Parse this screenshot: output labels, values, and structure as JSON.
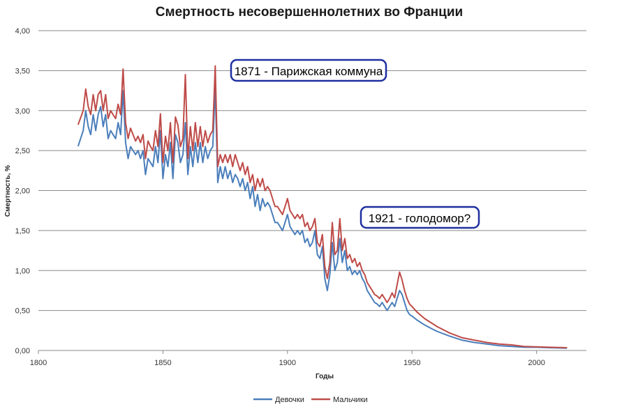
{
  "chart_data": {
    "type": "line",
    "title": "Смертность несовершеннолетних во Франции",
    "xlabel": "Годы",
    "ylabel": "Смертность, %",
    "xlim": [
      1800,
      2020
    ],
    "ylim": [
      0,
      4
    ],
    "x_ticks": [
      "1800",
      "1850",
      "1900",
      "1950",
      "2000"
    ],
    "y_ticks": [
      "0,00",
      "0,50",
      "1,00",
      "1,50",
      "2,00",
      "2,50",
      "3,00",
      "3,50",
      "4,00"
    ],
    "grid": "horizontal",
    "legend_position": "bottom",
    "colors": {
      "girls": "#4a7ebb",
      "boys": "#be4b48"
    },
    "series": [
      {
        "name": "Девочки",
        "points": [
          [
            1816,
            2.56
          ],
          [
            1818,
            2.75
          ],
          [
            1819,
            3.0
          ],
          [
            1820,
            2.8
          ],
          [
            1821,
            2.7
          ],
          [
            1822,
            2.95
          ],
          [
            1823,
            2.75
          ],
          [
            1824,
            2.95
          ],
          [
            1825,
            3.05
          ],
          [
            1826,
            2.8
          ],
          [
            1827,
            2.95
          ],
          [
            1828,
            2.65
          ],
          [
            1829,
            2.75
          ],
          [
            1830,
            2.7
          ],
          [
            1831,
            2.65
          ],
          [
            1832,
            2.85
          ],
          [
            1833,
            2.7
          ],
          [
            1834,
            3.25
          ],
          [
            1835,
            2.6
          ],
          [
            1836,
            2.4
          ],
          [
            1837,
            2.55
          ],
          [
            1838,
            2.5
          ],
          [
            1839,
            2.45
          ],
          [
            1840,
            2.5
          ],
          [
            1841,
            2.4
          ],
          [
            1842,
            2.5
          ],
          [
            1843,
            2.2
          ],
          [
            1844,
            2.4
          ],
          [
            1845,
            2.35
          ],
          [
            1846,
            2.3
          ],
          [
            1847,
            2.55
          ],
          [
            1848,
            2.35
          ],
          [
            1849,
            2.75
          ],
          [
            1850,
            2.15
          ],
          [
            1851,
            2.45
          ],
          [
            1852,
            2.3
          ],
          [
            1853,
            2.6
          ],
          [
            1854,
            2.15
          ],
          [
            1855,
            2.7
          ],
          [
            1856,
            2.6
          ],
          [
            1857,
            2.35
          ],
          [
            1858,
            2.45
          ],
          [
            1859,
            2.85
          ],
          [
            1860,
            2.2
          ],
          [
            1861,
            2.55
          ],
          [
            1862,
            2.3
          ],
          [
            1863,
            2.6
          ],
          [
            1864,
            2.35
          ],
          [
            1865,
            2.6
          ],
          [
            1866,
            2.35
          ],
          [
            1867,
            2.55
          ],
          [
            1868,
            2.4
          ],
          [
            1869,
            2.5
          ],
          [
            1870,
            2.55
          ],
          [
            1871,
            3.3
          ],
          [
            1872,
            2.1
          ],
          [
            1873,
            2.3
          ],
          [
            1874,
            2.15
          ],
          [
            1875,
            2.3
          ],
          [
            1876,
            2.15
          ],
          [
            1877,
            2.25
          ],
          [
            1878,
            2.1
          ],
          [
            1879,
            2.2
          ],
          [
            1880,
            2.15
          ],
          [
            1881,
            2.05
          ],
          [
            1882,
            2.15
          ],
          [
            1883,
            2.0
          ],
          [
            1884,
            2.1
          ],
          [
            1885,
            1.9
          ],
          [
            1886,
            2.05
          ],
          [
            1887,
            1.8
          ],
          [
            1888,
            1.95
          ],
          [
            1889,
            1.75
          ],
          [
            1890,
            1.9
          ],
          [
            1891,
            1.8
          ],
          [
            1892,
            1.85
          ],
          [
            1893,
            1.8
          ],
          [
            1894,
            1.7
          ],
          [
            1895,
            1.6
          ],
          [
            1896,
            1.6
          ],
          [
            1897,
            1.55
          ],
          [
            1898,
            1.5
          ],
          [
            1899,
            1.6
          ],
          [
            1900,
            1.7
          ],
          [
            1901,
            1.55
          ],
          [
            1902,
            1.5
          ],
          [
            1903,
            1.45
          ],
          [
            1904,
            1.5
          ],
          [
            1905,
            1.45
          ],
          [
            1906,
            1.5
          ],
          [
            1907,
            1.35
          ],
          [
            1908,
            1.4
          ],
          [
            1909,
            1.3
          ],
          [
            1910,
            1.35
          ],
          [
            1911,
            1.5
          ],
          [
            1912,
            1.2
          ],
          [
            1913,
            1.15
          ],
          [
            1914,
            1.3
          ],
          [
            1915,
            0.9
          ],
          [
            1916,
            0.75
          ],
          [
            1917,
            0.95
          ],
          [
            1918,
            1.35
          ],
          [
            1919,
            1.0
          ],
          [
            1920,
            1.1
          ],
          [
            1921,
            1.4
          ],
          [
            1922,
            1.1
          ],
          [
            1923,
            1.25
          ],
          [
            1924,
            1.0
          ],
          [
            1925,
            1.05
          ],
          [
            1926,
            0.95
          ],
          [
            1927,
            1.0
          ],
          [
            1928,
            0.95
          ],
          [
            1929,
            1.0
          ],
          [
            1930,
            0.9
          ],
          [
            1931,
            0.85
          ],
          [
            1932,
            0.75
          ],
          [
            1933,
            0.7
          ],
          [
            1934,
            0.65
          ],
          [
            1935,
            0.6
          ],
          [
            1936,
            0.58
          ],
          [
            1937,
            0.55
          ],
          [
            1938,
            0.6
          ],
          [
            1939,
            0.55
          ],
          [
            1940,
            0.5
          ],
          [
            1941,
            0.55
          ],
          [
            1942,
            0.6
          ],
          [
            1943,
            0.55
          ],
          [
            1944,
            0.65
          ],
          [
            1945,
            0.75
          ],
          [
            1946,
            0.7
          ],
          [
            1947,
            0.6
          ],
          [
            1948,
            0.5
          ],
          [
            1949,
            0.45
          ],
          [
            1950,
            0.43
          ],
          [
            1952,
            0.38
          ],
          [
            1955,
            0.32
          ],
          [
            1958,
            0.27
          ],
          [
            1960,
            0.24
          ],
          [
            1965,
            0.18
          ],
          [
            1970,
            0.13
          ],
          [
            1975,
            0.1
          ],
          [
            1980,
            0.08
          ],
          [
            1985,
            0.06
          ],
          [
            1990,
            0.05
          ],
          [
            1995,
            0.04
          ],
          [
            2000,
            0.04
          ],
          [
            2005,
            0.035
          ],
          [
            2012,
            0.03
          ]
        ]
      },
      {
        "name": "Мальчики",
        "points": [
          [
            1816,
            2.83
          ],
          [
            1818,
            3.0
          ],
          [
            1819,
            3.27
          ],
          [
            1820,
            3.05
          ],
          [
            1821,
            2.95
          ],
          [
            1822,
            3.2
          ],
          [
            1823,
            3.0
          ],
          [
            1824,
            3.2
          ],
          [
            1825,
            3.25
          ],
          [
            1826,
            3.0
          ],
          [
            1827,
            3.2
          ],
          [
            1828,
            2.9
          ],
          [
            1829,
            3.0
          ],
          [
            1830,
            2.95
          ],
          [
            1831,
            2.9
          ],
          [
            1832,
            3.08
          ],
          [
            1833,
            2.95
          ],
          [
            1834,
            3.52
          ],
          [
            1835,
            2.85
          ],
          [
            1836,
            2.65
          ],
          [
            1837,
            2.78
          ],
          [
            1838,
            2.7
          ],
          [
            1839,
            2.62
          ],
          [
            1840,
            2.68
          ],
          [
            1841,
            2.6
          ],
          [
            1842,
            2.7
          ],
          [
            1843,
            2.4
          ],
          [
            1844,
            2.62
          ],
          [
            1845,
            2.55
          ],
          [
            1846,
            2.5
          ],
          [
            1847,
            2.75
          ],
          [
            1848,
            2.55
          ],
          [
            1849,
            2.96
          ],
          [
            1850,
            2.35
          ],
          [
            1851,
            2.68
          ],
          [
            1852,
            2.5
          ],
          [
            1853,
            2.85
          ],
          [
            1854,
            2.35
          ],
          [
            1855,
            2.92
          ],
          [
            1856,
            2.82
          ],
          [
            1857,
            2.55
          ],
          [
            1858,
            2.65
          ],
          [
            1859,
            3.45
          ],
          [
            1860,
            2.4
          ],
          [
            1861,
            2.8
          ],
          [
            1862,
            2.5
          ],
          [
            1863,
            2.85
          ],
          [
            1864,
            2.55
          ],
          [
            1865,
            2.8
          ],
          [
            1866,
            2.55
          ],
          [
            1867,
            2.75
          ],
          [
            1868,
            2.6
          ],
          [
            1869,
            2.7
          ],
          [
            1870,
            2.75
          ],
          [
            1871,
            3.56
          ],
          [
            1872,
            2.3
          ],
          [
            1873,
            2.45
          ],
          [
            1874,
            2.35
          ],
          [
            1875,
            2.45
          ],
          [
            1876,
            2.35
          ],
          [
            1877,
            2.45
          ],
          [
            1878,
            2.3
          ],
          [
            1879,
            2.45
          ],
          [
            1880,
            2.35
          ],
          [
            1881,
            2.25
          ],
          [
            1882,
            2.35
          ],
          [
            1883,
            2.2
          ],
          [
            1884,
            2.3
          ],
          [
            1885,
            2.1
          ],
          [
            1886,
            2.2
          ],
          [
            1887,
            2.0
          ],
          [
            1888,
            2.15
          ],
          [
            1889,
            2.05
          ],
          [
            1890,
            2.15
          ],
          [
            1891,
            2.0
          ],
          [
            1892,
            2.05
          ],
          [
            1893,
            2.0
          ],
          [
            1894,
            1.9
          ],
          [
            1895,
            1.8
          ],
          [
            1896,
            1.8
          ],
          [
            1897,
            1.75
          ],
          [
            1898,
            1.7
          ],
          [
            1899,
            1.8
          ],
          [
            1900,
            1.9
          ],
          [
            1901,
            1.75
          ],
          [
            1902,
            1.7
          ],
          [
            1903,
            1.65
          ],
          [
            1904,
            1.7
          ],
          [
            1905,
            1.65
          ],
          [
            1906,
            1.7
          ],
          [
            1907,
            1.55
          ],
          [
            1908,
            1.6
          ],
          [
            1909,
            1.5
          ],
          [
            1910,
            1.55
          ],
          [
            1911,
            1.65
          ],
          [
            1912,
            1.35
          ],
          [
            1913,
            1.3
          ],
          [
            1914,
            1.45
          ],
          [
            1915,
            1.05
          ],
          [
            1916,
            0.9
          ],
          [
            1917,
            1.1
          ],
          [
            1918,
            1.6
          ],
          [
            1919,
            1.2
          ],
          [
            1920,
            1.25
          ],
          [
            1921,
            1.65
          ],
          [
            1922,
            1.25
          ],
          [
            1923,
            1.4
          ],
          [
            1924,
            1.15
          ],
          [
            1925,
            1.2
          ],
          [
            1926,
            1.1
          ],
          [
            1927,
            1.15
          ],
          [
            1928,
            1.05
          ],
          [
            1929,
            1.1
          ],
          [
            1930,
            1.0
          ],
          [
            1931,
            0.95
          ],
          [
            1932,
            0.85
          ],
          [
            1933,
            0.8
          ],
          [
            1934,
            0.75
          ],
          [
            1935,
            0.7
          ],
          [
            1936,
            0.68
          ],
          [
            1937,
            0.65
          ],
          [
            1938,
            0.7
          ],
          [
            1939,
            0.65
          ],
          [
            1940,
            0.6
          ],
          [
            1941,
            0.65
          ],
          [
            1942,
            0.72
          ],
          [
            1943,
            0.66
          ],
          [
            1944,
            0.82
          ],
          [
            1945,
            0.98
          ],
          [
            1946,
            0.88
          ],
          [
            1947,
            0.75
          ],
          [
            1948,
            0.65
          ],
          [
            1949,
            0.58
          ],
          [
            1950,
            0.55
          ],
          [
            1952,
            0.48
          ],
          [
            1955,
            0.4
          ],
          [
            1958,
            0.34
          ],
          [
            1960,
            0.3
          ],
          [
            1965,
            0.22
          ],
          [
            1970,
            0.16
          ],
          [
            1975,
            0.13
          ],
          [
            1980,
            0.1
          ],
          [
            1985,
            0.08
          ],
          [
            1990,
            0.07
          ],
          [
            1995,
            0.05
          ],
          [
            2000,
            0.045
          ],
          [
            2005,
            0.04
          ],
          [
            2012,
            0.035
          ]
        ]
      }
    ],
    "annotations": [
      {
        "text": "1871 - Парижская коммуна"
      },
      {
        "text": "1921 - голодомор?"
      }
    ]
  }
}
